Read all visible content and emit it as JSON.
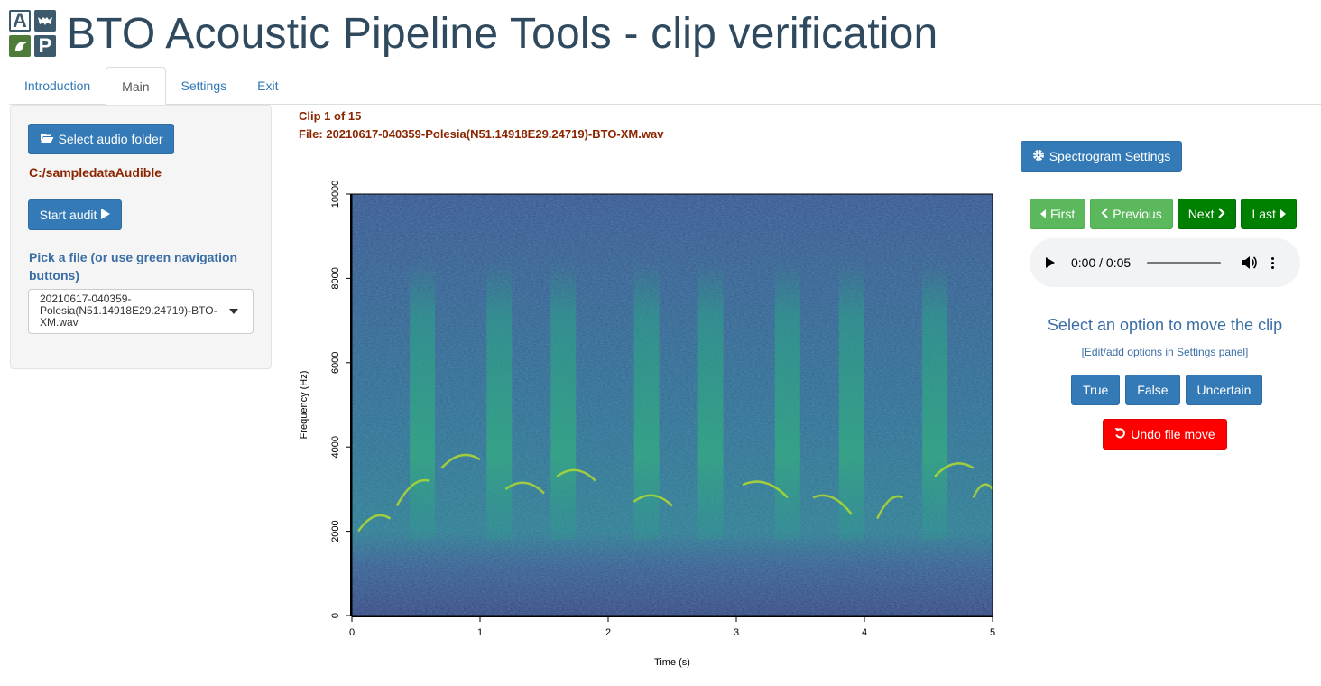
{
  "header": {
    "logo_letters": [
      "A",
      "P"
    ],
    "title": "BTO Acoustic Pipeline Tools - clip verification"
  },
  "tabs": [
    {
      "label": "Introduction",
      "active": false
    },
    {
      "label": "Main",
      "active": true
    },
    {
      "label": "Settings",
      "active": false
    },
    {
      "label": "Exit",
      "active": false
    }
  ],
  "sidebar": {
    "select_folder_label": "Select audio folder",
    "folder_path": "C:/sampledataAudible",
    "start_audit_label": "Start audit",
    "pick_file_label": "Pick a file (or use green navigation buttons)",
    "selected_file": "20210617-040359-Polesia(N51.14918E29.24719)-BTO-XM.wav"
  },
  "clip": {
    "counter": "Clip 1 of 15",
    "file_line": "File: 20210617-040359-Polesia(N51.14918E29.24719)-BTO-XM.wav"
  },
  "chart_data": {
    "type": "heatmap",
    "title": "",
    "xlabel": "Time (s)",
    "ylabel": "Frequency (Hz)",
    "xlim": [
      0,
      5
    ],
    "ylim": [
      0,
      10000
    ],
    "x_ticks": [
      0,
      1,
      2,
      3,
      4,
      5
    ],
    "y_ticks": [
      0,
      2000,
      4000,
      6000,
      8000,
      10000
    ],
    "colormap": "viridis",
    "grid": false,
    "legend": "none"
  },
  "right_panel": {
    "spectrogram_settings_label": "Spectrogram Settings",
    "nav": {
      "first": "First",
      "previous": "Previous",
      "next": "Next",
      "last": "Last"
    },
    "audio": {
      "time": "0:00 / 0:05",
      "progress": 0
    },
    "move_title": "Select an option to move the clip",
    "move_hint": "[Edit/add options in Settings panel]",
    "choices": [
      "True",
      "False",
      "Uncertain"
    ],
    "undo_label": "Undo file move"
  },
  "colors": {
    "primary": "#337ab7",
    "nav_light_green": "#5cb85c",
    "nav_dark_green": "#008000",
    "undo_red": "#ff0000",
    "title_color": "#2f4a5f",
    "info_text": "#8b2500"
  }
}
